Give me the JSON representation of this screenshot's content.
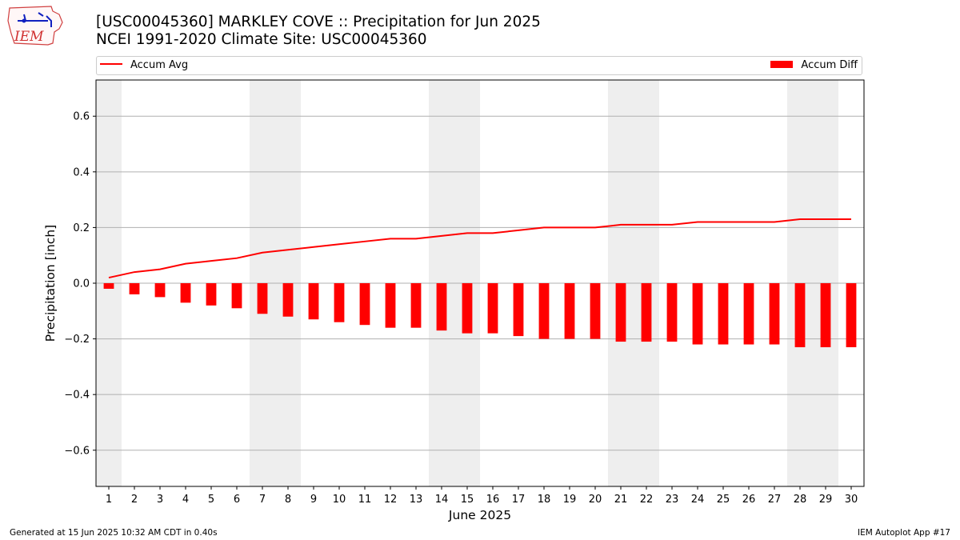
{
  "logo": {
    "text": "IEM"
  },
  "header": {
    "title_line1": "[USC00045360] MARKLEY COVE :: Precipitation for Jun 2025",
    "title_line2": "NCEI 1991-2020 Climate Site: USC00045360"
  },
  "legend": {
    "avg_label": "Accum Avg",
    "diff_label": "Accum Diff"
  },
  "footer": {
    "left": "Generated at 15 Jun 2025 10:32 AM CDT in 0.40s",
    "right": "IEM Autoplot App #17"
  },
  "colors": {
    "series": "#ff0000",
    "weekend_shade": "#eeeeee",
    "grid": "#b0b0b0"
  },
  "chart_data": {
    "type": "bar",
    "xlabel": "June 2025",
    "ylabel": "Precipitation [inch]",
    "ylim": [
      -0.73,
      0.73
    ],
    "xlim": [
      0.5,
      30.5
    ],
    "yticks": [
      -0.6,
      -0.4,
      -0.2,
      0.0,
      0.2,
      0.4,
      0.6
    ],
    "ytick_labels": [
      "−0.6",
      "−0.4",
      "−0.2",
      "0.0",
      "0.2",
      "0.4",
      "0.6"
    ],
    "grid": "horizontal",
    "legend_placement": "top (above plot)",
    "x": [
      1,
      2,
      3,
      4,
      5,
      6,
      7,
      8,
      9,
      10,
      11,
      12,
      13,
      14,
      15,
      16,
      17,
      18,
      19,
      20,
      21,
      22,
      23,
      24,
      25,
      26,
      27,
      28,
      29,
      30
    ],
    "shaded_day_ranges": [
      [
        0.5,
        1.5
      ],
      [
        6.5,
        8.5
      ],
      [
        13.5,
        15.5
      ],
      [
        20.5,
        22.5
      ],
      [
        27.5,
        29.5
      ]
    ],
    "series": [
      {
        "name": "Accum Avg",
        "kind": "line",
        "values": [
          0.02,
          0.04,
          0.05,
          0.07,
          0.08,
          0.09,
          0.11,
          0.12,
          0.13,
          0.14,
          0.15,
          0.16,
          0.16,
          0.17,
          0.18,
          0.18,
          0.19,
          0.2,
          0.2,
          0.2,
          0.21,
          0.21,
          0.21,
          0.22,
          0.22,
          0.22,
          0.22,
          0.23,
          0.23,
          0.23
        ]
      },
      {
        "name": "Accum Diff",
        "kind": "bar",
        "values": [
          -0.02,
          -0.04,
          -0.05,
          -0.07,
          -0.08,
          -0.09,
          -0.11,
          -0.12,
          -0.13,
          -0.14,
          -0.15,
          -0.16,
          -0.16,
          -0.17,
          -0.18,
          -0.18,
          -0.19,
          -0.2,
          -0.2,
          -0.2,
          -0.21,
          -0.21,
          -0.21,
          -0.22,
          -0.22,
          -0.22,
          -0.22,
          -0.23,
          -0.23,
          -0.23
        ]
      }
    ]
  }
}
